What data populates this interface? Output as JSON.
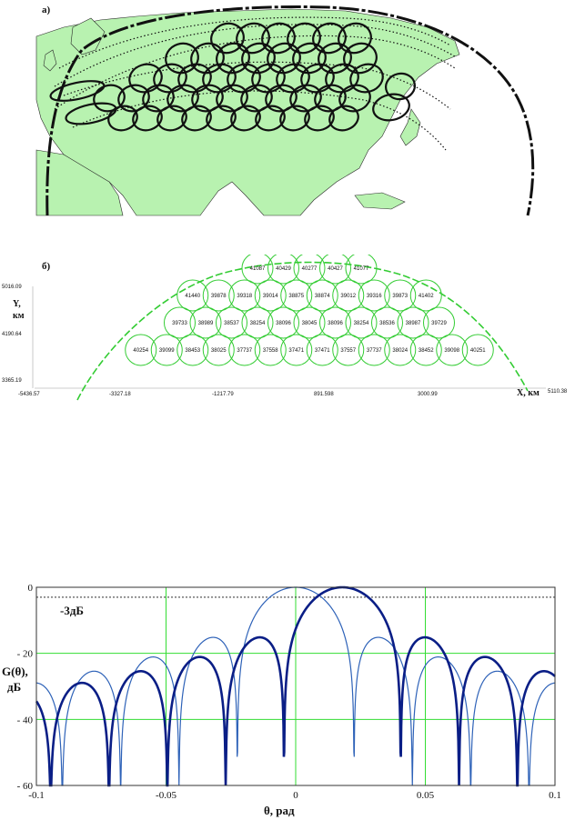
{
  "panel_a": {
    "letter": "а)"
  },
  "panel_b": {
    "letter": "б)",
    "y_label_1": "Y,",
    "y_label_2": "км",
    "x_label": "X, км",
    "y_ticks": [
      "5016.09",
      "4190.64",
      "3365.19"
    ],
    "x_ticks": [
      "-5436.57",
      "-3327.18",
      "-1217.79",
      "891.598",
      "3000.99",
      "5110.38"
    ],
    "rows": [
      [
        "41087",
        "40429",
        "40277",
        "40427",
        "41077"
      ],
      [
        "41440",
        "39878",
        "39318",
        "39014",
        "38875",
        "38874",
        "39012",
        "39316",
        "39873",
        "41402"
      ],
      [
        "39733",
        "38989",
        "38537",
        "38254",
        "38096",
        "38045",
        "38096",
        "38254",
        "38536",
        "38987",
        "39729"
      ],
      [
        "40254",
        "39099",
        "38453",
        "38025",
        "37737",
        "37558",
        "37471",
        "37471",
        "37557",
        "37737",
        "38024",
        "38452",
        "39098",
        "40251"
      ]
    ]
  },
  "panel_pattern": {
    "annotation": "-3дБ",
    "ylabel_1": "G(θ),",
    "ylabel_2": "дБ"
  },
  "chart_data": {
    "type": "line",
    "xlabel": "θ, рад",
    "ylabel": "G(θ), дБ",
    "xlim": [
      -0.1,
      0.1
    ],
    "ylim": [
      -60,
      0
    ],
    "x_ticks": [
      "-0.1",
      "-0.05",
      "0",
      "0.05",
      "0.1"
    ],
    "y_ticks": [
      "0",
      "- 20",
      "- 40",
      "- 60"
    ],
    "grid": true,
    "reference_level_db": -3,
    "series": [
      {
        "style": "thin",
        "color": "#2e62b8",
        "peak_x": 0.0,
        "first_null": 0.0225,
        "peak_db": 0
      },
      {
        "style": "thick",
        "color": "#0a1e86",
        "peak_x": 0.018,
        "first_null": 0.0225,
        "peak_db": 0
      }
    ]
  }
}
